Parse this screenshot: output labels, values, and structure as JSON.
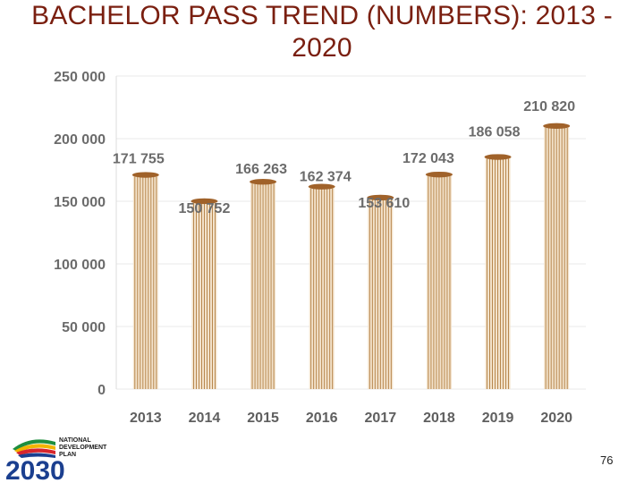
{
  "slide": {
    "title": "BACHELOR PASS TREND (NUMBERS): 2013 - 2020",
    "page_number": "76",
    "logo": {
      "line1": "NATIONAL",
      "line2": "DEVELOPMENT",
      "line3": "PLAN",
      "year": "2030"
    }
  },
  "colors": {
    "title": "#7a1f10",
    "column_light": "#f3e3cc",
    "column_stripe": "#b07c3e",
    "column_cap": "#a0622a",
    "axis_text": "#6b6b6b",
    "grid": "#e8e8e8"
  },
  "chart_data": {
    "type": "bar",
    "categories": [
      "2013",
      "2014",
      "2015",
      "2016",
      "2017",
      "2018",
      "2019",
      "2020"
    ],
    "values": [
      171755,
      150752,
      166263,
      162374,
      153610,
      172043,
      186058,
      210820
    ],
    "data_labels": [
      "171 755",
      "150 752",
      "166 263",
      "162 374",
      "153 610",
      "172 043",
      "186 058",
      "210 820"
    ],
    "ylim": [
      0,
      250000
    ],
    "y_ticks": [
      0,
      50000,
      100000,
      150000,
      200000,
      250000
    ],
    "y_tick_labels": [
      "0",
      "50 000",
      "100 000",
      "150 000",
      "200 000",
      "250 000"
    ],
    "title": "",
    "xlabel": "",
    "ylabel": "",
    "grid": true,
    "legend": "none"
  }
}
